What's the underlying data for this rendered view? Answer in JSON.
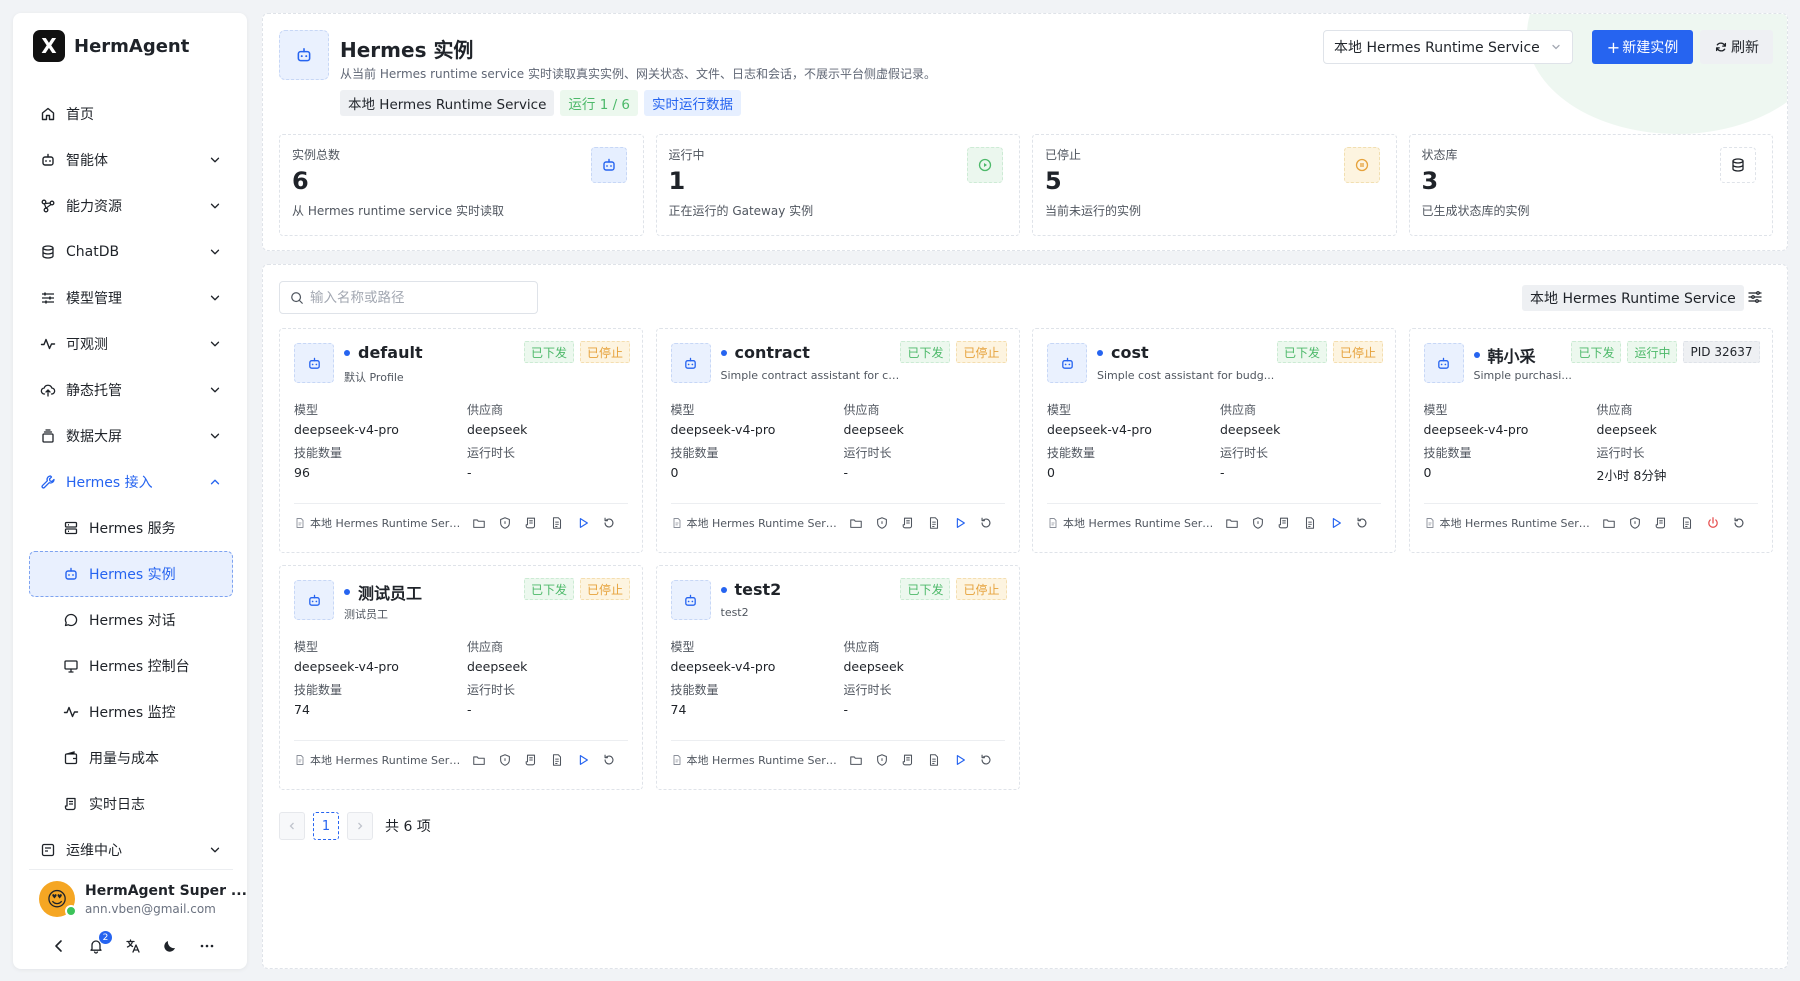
{
  "brand": {
    "logo_letter": "X",
    "name": "HermAgent"
  },
  "nav": {
    "items": [
      {
        "label": "首页",
        "icon": "home-icon",
        "chevron": false
      },
      {
        "label": "智能体",
        "icon": "bot-icon",
        "chevron": true
      },
      {
        "label": "能力资源",
        "icon": "puzzle-icon",
        "chevron": true
      },
      {
        "label": "ChatDB",
        "icon": "database-icon",
        "chevron": true
      },
      {
        "label": "模型管理",
        "icon": "sliders-icon",
        "chevron": true
      },
      {
        "label": "可观测",
        "icon": "activity-icon",
        "chevron": true
      },
      {
        "label": "静态托管",
        "icon": "cloud-upload-icon",
        "chevron": true
      },
      {
        "label": "数据大屏",
        "icon": "screen-stack-icon",
        "chevron": true
      },
      {
        "label": "Hermes 接入",
        "icon": "wrench-icon",
        "chevron": true,
        "expanded": true
      }
    ],
    "sub_items": [
      {
        "label": "Hermes 服务",
        "icon": "server-icon"
      },
      {
        "label": "Hermes 实例",
        "icon": "bot-icon",
        "selected": true
      },
      {
        "label": "Hermes 对话",
        "icon": "chat-bubble-icon"
      },
      {
        "label": "Hermes 控制台",
        "icon": "monitor-icon"
      },
      {
        "label": "Hermes 监控",
        "icon": "activity-icon"
      },
      {
        "label": "用量与成本",
        "icon": "wallet-icon"
      },
      {
        "label": "实时日志",
        "icon": "log-scroll-icon"
      }
    ],
    "ops": {
      "label": "运维中心",
      "icon": "ops-icon",
      "chevron": true
    }
  },
  "user": {
    "name": "HermAgent Super ...",
    "email": "ann.vben@gmail.com",
    "avatar": "😍"
  },
  "toolbar": {
    "notification_count": "2"
  },
  "header": {
    "title": "Hermes 实例",
    "description": "从当前 Hermes runtime service 实时读取真实实例、网关状态、文件、日志和会话，不展示平台侧虚假记录。",
    "tags": [
      "本地 Hermes Runtime Service",
      "运行 1 / 6",
      "实时运行数据"
    ],
    "service_select": "本地 Hermes Runtime Service",
    "new_button": "新建实例",
    "refresh_button": "刷新"
  },
  "stats": [
    {
      "label": "实例总数",
      "value": "6",
      "sub": "从 Hermes runtime service 实时读取",
      "icon": "bot-icon",
      "tone": "blue"
    },
    {
      "label": "运行中",
      "value": "1",
      "sub": "正在运行的 Gateway 实例",
      "icon": "play-circle-icon",
      "tone": "green"
    },
    {
      "label": "已停止",
      "value": "5",
      "sub": "当前未运行的实例",
      "icon": "pause-circle-icon",
      "tone": "yellow"
    },
    {
      "label": "状态库",
      "value": "3",
      "sub": "已生成状态库的实例",
      "icon": "database-icon",
      "tone": "white"
    }
  ],
  "list": {
    "search_placeholder": "输入名称或路径",
    "service_tag": "本地 Hermes Runtime Service",
    "field_labels": {
      "model": "模型",
      "provider": "供应商",
      "skills": "技能数量",
      "uptime": "运行时长"
    },
    "pagination": {
      "current": "1",
      "total": "共 6 项"
    }
  },
  "instances": [
    {
      "name": "default",
      "desc": "默认 Profile",
      "tags": [
        {
          "t": "已下发",
          "c": "g"
        },
        {
          "t": "已停止",
          "c": "y"
        }
      ],
      "model": "deepseek-v4-pro",
      "provider": "deepseek",
      "skills": "96",
      "uptime": "-",
      "service": "本地 Hermes Runtime Servic...",
      "running": false
    },
    {
      "name": "contract",
      "desc": "Simple contract assistant for cl...",
      "tags": [
        {
          "t": "已下发",
          "c": "g"
        },
        {
          "t": "已停止",
          "c": "y"
        }
      ],
      "model": "deepseek-v4-pro",
      "provider": "deepseek",
      "skills": "0",
      "uptime": "-",
      "service": "本地 Hermes Runtime Servic...",
      "running": false
    },
    {
      "name": "cost",
      "desc": "Simple cost assistant for budg...",
      "tags": [
        {
          "t": "已下发",
          "c": "g"
        },
        {
          "t": "已停止",
          "c": "y"
        }
      ],
      "model": "deepseek-v4-pro",
      "provider": "deepseek",
      "skills": "0",
      "uptime": "-",
      "service": "本地 Hermes Runtime Servi...",
      "running": false
    },
    {
      "name": "韩小采",
      "desc": "Simple purchasi...",
      "tags": [
        {
          "t": "已下发",
          "c": "g"
        },
        {
          "t": "运行中",
          "c": "g"
        },
        {
          "t": "PID 32637",
          "c": "gr"
        }
      ],
      "model": "deepseek-v4-pro",
      "provider": "deepseek",
      "skills": "0",
      "uptime": "2小时 8分钟",
      "service": "本地 Hermes Runtime Servic...",
      "running": true
    },
    {
      "name": "测试员工",
      "desc": "测试员工",
      "tags": [
        {
          "t": "已下发",
          "c": "g"
        },
        {
          "t": "已停止",
          "c": "y"
        }
      ],
      "model": "deepseek-v4-pro",
      "provider": "deepseek",
      "skills": "74",
      "uptime": "-",
      "service": "本地 Hermes Runtime Servi...",
      "running": false
    },
    {
      "name": "test2",
      "desc": "test2",
      "tags": [
        {
          "t": "已下发",
          "c": "g"
        },
        {
          "t": "已停止",
          "c": "y"
        }
      ],
      "model": "deepseek-v4-pro",
      "provider": "deepseek",
      "skills": "74",
      "uptime": "-",
      "service": "本地 Hermes Runtime Servi...",
      "running": false
    }
  ],
  "colors": {
    "primary": "#2664f0",
    "success": "#4db96a",
    "warning": "#e6a23c",
    "danger": "#e54b4b"
  }
}
